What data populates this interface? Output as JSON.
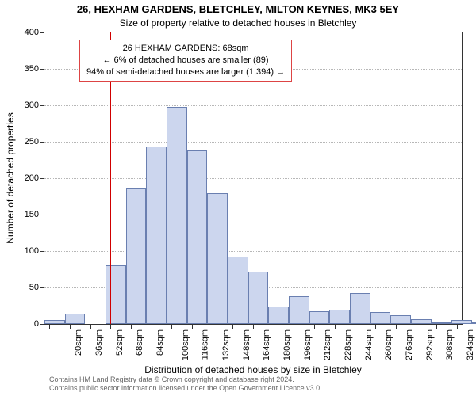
{
  "title_main": "26, HEXHAM GARDENS, BLETCHLEY, MILTON KEYNES, MK3 5EY",
  "title_sub": "Size of property relative to detached houses in Bletchley",
  "info_box": {
    "line1": "26 HEXHAM GARDENS: 68sqm",
    "line2": "← 6% of detached houses are smaller (89)",
    "line3": "94% of semi-detached houses are larger (1,394) →"
  },
  "y_axis_label": "Number of detached properties",
  "x_axis_label": "Distribution of detached houses by size in Bletchley",
  "credit_line1": "Contains HM Land Registry data © Crown copyright and database right 2024.",
  "credit_line2": "Contains public sector information licensed under the Open Government Licence v3.0.",
  "chart": {
    "type": "histogram",
    "background_color": "#ffffff",
    "plot_border_color": "#333333",
    "bar_fill_color": "#ccd6ee",
    "bar_border_color": "#6a7fb0",
    "grid_color": "#b7b7b7",
    "ref_line_color": "#d00000",
    "ref_line_value": 68,
    "info_box_border_color": "#d44444",
    "title_fontsize": 13,
    "subtitle_fontsize": 12,
    "axis_label_fontsize": 12,
    "tick_fontsize": 11,
    "credit_fontsize": 9,
    "credit_color": "#666666",
    "xlim": [
      16,
      344
    ],
    "ylim": [
      0,
      400
    ],
    "ytick_step": 50,
    "xtick_step": 16,
    "xtick_suffix": "sqm",
    "xtick_start": 20,
    "bar_x_start": 16,
    "bar_width_sqm": 16,
    "values": [
      5,
      14,
      0,
      80,
      186,
      243,
      298,
      238,
      179,
      92,
      72,
      24,
      38,
      17,
      20,
      42,
      16,
      12,
      7,
      2,
      5,
      0.5,
      0,
      0,
      0,
      0,
      0,
      0,
      0,
      0,
      0,
      0,
      0,
      0,
      0,
      0,
      0,
      0,
      0,
      0,
      0,
      0,
      0,
      0,
      0
    ]
  }
}
